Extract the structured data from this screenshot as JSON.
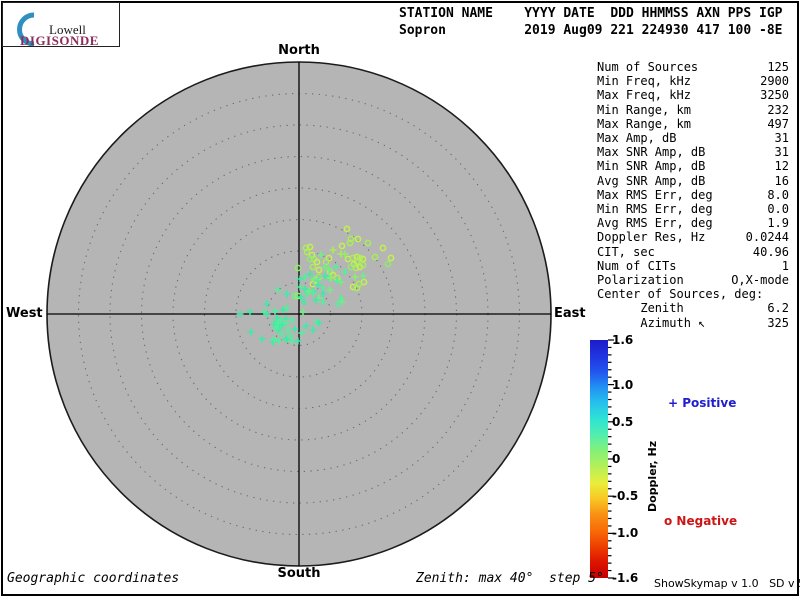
{
  "logo": {
    "line1": "Lowell",
    "line2": "DIGISONDE",
    "arc_color": "#2e8fc0",
    "brand_color": "#8c2d5c"
  },
  "header": {
    "columns_line": "STATION NAME    YYYY DATE  DDD HHMMSS AXN PPS IGP",
    "values_line": "Sopron          2019 Aug09 221 224930 417 100 -8E"
  },
  "stats": {
    "rows": [
      {
        "label": "Num of Sources",
        "value": "125"
      },
      {
        "label": "Min Freq, kHz",
        "value": "2900"
      },
      {
        "label": "Max Freq, kHz",
        "value": "3250"
      },
      {
        "label": "Min Range, km",
        "value": "232"
      },
      {
        "label": "Max Range, km",
        "value": "497"
      },
      {
        "label": "Max Amp, dB",
        "value": "31"
      },
      {
        "label": "Max SNR Amp, dB",
        "value": "31"
      },
      {
        "label": "Min SNR Amp, dB",
        "value": "12"
      },
      {
        "label": "Avg SNR Amp, dB",
        "value": "16"
      },
      {
        "label": "Max RMS Err, deg",
        "value": "8.0"
      },
      {
        "label": "Min RMS Err, deg",
        "value": "0.0"
      },
      {
        "label": "Avg RMS Err, deg",
        "value": "1.9"
      },
      {
        "label": "Doppler Res, Hz",
        "value": "0.0244"
      },
      {
        "label": "CIT, sec",
        "value": "40.96"
      },
      {
        "label": "Num of CITs",
        "value": "1"
      },
      {
        "label": "Polarization",
        "value": "O,X-mode"
      },
      {
        "label": "Center of Sources, deg:",
        "value": ""
      },
      {
        "label": "      Zenith",
        "value": "6.2"
      },
      {
        "label": "      Azimuth ↖",
        "value": "325"
      }
    ]
  },
  "compass": {
    "north": "North",
    "south": "South",
    "east": "East",
    "west": "West"
  },
  "colorbar": {
    "title": "Doppler, Hz",
    "ticks": [
      "1.6",
      "1.0",
      "0.5",
      "0",
      "-0.5",
      "-1.0",
      "-1.6"
    ],
    "range": [
      -1.6,
      1.6
    ],
    "gradient_stops": [
      "#1c1cc8",
      "#2034e0",
      "#2254ee",
      "#2292f4",
      "#26c2ec",
      "#2ee4d2",
      "#54eeae",
      "#86f076",
      "#b4f05a",
      "#e8ee3c",
      "#f8c824",
      "#f89014",
      "#f86c08",
      "#ee4000",
      "#dc1400",
      "#c40000"
    ],
    "legend_positive": "+ Positive",
    "legend_negative": "o Negative",
    "positive_color": "#2020cc",
    "negative_color": "#cc1515"
  },
  "footer": {
    "left": "Geographic coordinates",
    "center": "Zenith: max 40°  step 5°",
    "right": "ShowSkymap v 1.0   SD v 5.1"
  },
  "chart_data": {
    "type": "scatter",
    "projection": "polar-skymap",
    "title": "",
    "compass_labels": [
      "North",
      "East",
      "South",
      "West"
    ],
    "zenith_max_deg": 40,
    "zenith_step_deg": 5,
    "disc_fill": "#b5b5b5",
    "ring_color": "#6d6d6d",
    "doppler_range_hz": [
      -1.6,
      1.6
    ],
    "marker_meaning": {
      "+": "positive Doppler source",
      "o": "negative Doppler source"
    },
    "point_units": "pixel offset from zenith center; 31.5 px = 5 deg zenith; +x East, +y South",
    "center_of_sources": {
      "zenith_deg": 6.2,
      "azimuth_deg": 325
    },
    "num_sources": 125,
    "marker_palette": [
      "#3ceca8",
      "#52f09a",
      "#70f083",
      "#8eee68",
      "#a8ee58",
      "#c4f24c"
    ],
    "points": [
      [
        48,
        -85,
        "o",
        5
      ],
      [
        52,
        -75,
        "o",
        4
      ],
      [
        59,
        -75,
        "o",
        5
      ],
      [
        51,
        -71,
        "o",
        4
      ],
      [
        84,
        -66,
        "o",
        5
      ],
      [
        76,
        -57,
        "o",
        4
      ],
      [
        89,
        -50,
        "o",
        3
      ],
      [
        92,
        -56,
        "o",
        5
      ],
      [
        7,
        -66,
        "o",
        4
      ],
      [
        11,
        -67,
        "o",
        5
      ],
      [
        8,
        -62,
        "o",
        4
      ],
      [
        13,
        -59,
        "o",
        5
      ],
      [
        15,
        -55,
        "o",
        4
      ],
      [
        18,
        -52,
        "o",
        5
      ],
      [
        11,
        -55,
        "o",
        3
      ],
      [
        14,
        -47,
        "o",
        4
      ],
      [
        20,
        -44,
        "o",
        5
      ],
      [
        30,
        -56,
        "o",
        5
      ],
      [
        27,
        -52,
        "o",
        4
      ],
      [
        43,
        -68,
        "o",
        5
      ],
      [
        69,
        -71,
        "o",
        4
      ],
      [
        49,
        -55,
        "o",
        5
      ],
      [
        54,
        -56,
        "o",
        4
      ],
      [
        58,
        -57,
        "o",
        5
      ],
      [
        61,
        -56,
        "o",
        4
      ],
      [
        64,
        -55,
        "o",
        5
      ],
      [
        58,
        -52,
        "o",
        4
      ],
      [
        55,
        -50,
        "o",
        5
      ],
      [
        52,
        -47,
        "o",
        3
      ],
      [
        57,
        -46,
        "o",
        4
      ],
      [
        61,
        -47,
        "o",
        5
      ],
      [
        64,
        -49,
        "o",
        4
      ],
      [
        65,
        -32,
        "o",
        5
      ],
      [
        60,
        -30,
        "o",
        4
      ],
      [
        54,
        -27,
        "o",
        5
      ],
      [
        58,
        -26,
        "o",
        4
      ],
      [
        31,
        -42,
        "o",
        4
      ],
      [
        34,
        -39,
        "o",
        5
      ],
      [
        38,
        -36,
        "o",
        4
      ],
      [
        20,
        -37,
        "o",
        3
      ],
      [
        17,
        -34,
        "o",
        4
      ],
      [
        14,
        -30,
        "o",
        5
      ],
      [
        -1,
        -46,
        "o",
        3
      ],
      [
        -4,
        -18,
        "o",
        2
      ],
      [
        -1,
        -18,
        "o",
        3
      ],
      [
        42,
        -60,
        "+",
        4
      ],
      [
        46,
        -60,
        "+",
        3
      ],
      [
        34,
        -64,
        "+",
        4
      ],
      [
        22,
        -59,
        "+",
        2
      ],
      [
        37,
        -47,
        "+",
        1
      ],
      [
        30,
        -45,
        "+",
        2
      ],
      [
        46,
        -42,
        "+",
        1
      ],
      [
        56,
        -37,
        "+",
        3
      ],
      [
        64,
        -38,
        "+",
        2
      ],
      [
        26,
        -38,
        "+",
        0
      ],
      [
        30,
        -36,
        "+",
        1
      ],
      [
        11,
        -40,
        "+",
        0
      ],
      [
        6,
        -37,
        "+",
        1
      ],
      [
        1,
        -35,
        "+",
        0
      ],
      [
        15,
        -35,
        "+",
        2
      ],
      [
        19,
        -33,
        "+",
        1
      ],
      [
        42,
        -32,
        "+",
        2
      ],
      [
        32,
        -36,
        "+",
        3
      ],
      [
        38,
        -33,
        "+",
        1
      ],
      [
        19,
        -29,
        "+",
        0
      ],
      [
        24,
        -26,
        "+",
        1
      ],
      [
        31,
        -24,
        "+",
        2
      ],
      [
        14,
        -23,
        "+",
        0
      ],
      [
        8,
        -20,
        "+",
        1
      ],
      [
        2,
        -17,
        "+",
        0
      ],
      [
        1,
        -27,
        "+",
        1
      ],
      [
        6,
        -25,
        "+",
        0
      ],
      [
        10,
        -23,
        "+",
        2
      ],
      [
        14,
        -21,
        "+",
        1
      ],
      [
        24,
        -20,
        "+",
        0
      ],
      [
        42,
        -16,
        "+",
        1
      ],
      [
        20,
        -16,
        "+",
        2
      ],
      [
        17,
        -14,
        "+",
        0
      ],
      [
        5,
        -12,
        "+",
        0
      ],
      [
        24,
        -12,
        "+",
        1
      ],
      [
        43,
        -12,
        "+",
        2
      ],
      [
        39,
        -10,
        "+",
        1
      ],
      [
        -12,
        -20,
        "+",
        0
      ],
      [
        -21,
        -24,
        "+",
        1
      ],
      [
        -32,
        -10,
        "+",
        0
      ],
      [
        -12,
        -6,
        "+",
        1
      ],
      [
        -49,
        -2,
        "+",
        0
      ],
      [
        -59,
        0,
        "+",
        0
      ],
      [
        -35,
        -2,
        "+",
        1
      ],
      [
        -32,
        0,
        "+",
        0
      ],
      [
        -24,
        -3,
        "+",
        1
      ],
      [
        -16,
        -4,
        "+",
        0
      ],
      [
        -22,
        4,
        "+",
        0
      ],
      [
        -18,
        6,
        "+",
        1
      ],
      [
        -13,
        5,
        "+",
        0
      ],
      [
        -7,
        6,
        "+",
        1
      ],
      [
        -22,
        8,
        "+",
        0
      ],
      [
        -18,
        11,
        "+",
        1
      ],
      [
        -20,
        14,
        "+",
        0
      ],
      [
        -11,
        16,
        "+",
        1
      ],
      [
        7,
        12,
        "+",
        0
      ],
      [
        18,
        8,
        "+",
        1
      ],
      [
        4,
        -2,
        "+",
        2
      ],
      [
        20,
        9,
        "+",
        0
      ],
      [
        -4,
        15,
        "+",
        0
      ],
      [
        3,
        19,
        "+",
        1
      ],
      [
        -21,
        16,
        "+",
        0
      ],
      [
        -23,
        14,
        "+",
        1
      ],
      [
        -25,
        10,
        "+",
        0
      ],
      [
        -21,
        9,
        "+",
        1
      ],
      [
        -17,
        11,
        "+",
        0
      ],
      [
        -13,
        9,
        "+",
        1
      ],
      [
        -37,
        25,
        "+",
        0
      ],
      [
        -26,
        28,
        "+",
        0
      ],
      [
        -20,
        27,
        "+",
        1
      ],
      [
        -13,
        25,
        "+",
        0
      ],
      [
        -7,
        27,
        "+",
        1
      ],
      [
        -1,
        27,
        "+",
        0
      ],
      [
        -48,
        18,
        "+",
        0
      ],
      [
        -17,
        20,
        "+",
        1
      ],
      [
        14,
        16,
        "+",
        0
      ],
      [
        -25,
        25,
        "+",
        1
      ],
      [
        -12,
        25,
        "+",
        0
      ],
      [
        -9,
        22,
        "+",
        1
      ],
      [
        26,
        -47,
        "+",
        2
      ]
    ]
  }
}
